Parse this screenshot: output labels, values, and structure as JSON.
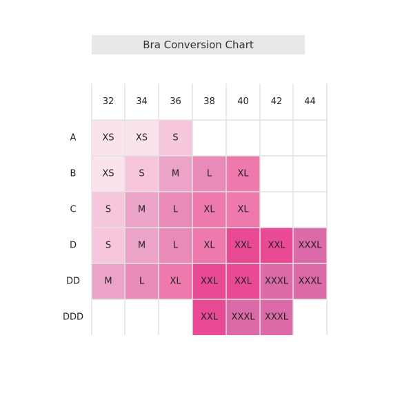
{
  "chart_data": {
    "type": "table",
    "title": "Bra Conversion Chart",
    "columns": [
      "32",
      "34",
      "36",
      "38",
      "40",
      "42",
      "44"
    ],
    "rows": [
      "A",
      "B",
      "C",
      "D",
      "DD",
      "DDD"
    ],
    "cells": [
      [
        "XS",
        "XS",
        "S",
        "",
        "",
        "",
        ""
      ],
      [
        "XS",
        "S",
        "M",
        "L",
        "XL",
        "",
        ""
      ],
      [
        "S",
        "M",
        "L",
        "XL",
        "XL",
        "",
        ""
      ],
      [
        "S",
        "M",
        "L",
        "XL",
        "XXL",
        "XXL",
        "XXXL"
      ],
      [
        "M",
        "L",
        "XL",
        "XXL",
        "XXL",
        "XXXL",
        "XXXL"
      ],
      [
        "",
        "",
        "",
        "XXL",
        "XXXL",
        "XXXL",
        ""
      ]
    ],
    "colors": {
      "XS": "#fbe3ee",
      "S": "#f6c7dc",
      "M": "#eba4c7",
      "L": "#e88bb8",
      "XL": "#ee79ad",
      "XXL": "#e84a96",
      "XXXL": "#db6aa9",
      "grid": "#e2e2e2",
      "title_bg": "#e8e8ea"
    }
  }
}
